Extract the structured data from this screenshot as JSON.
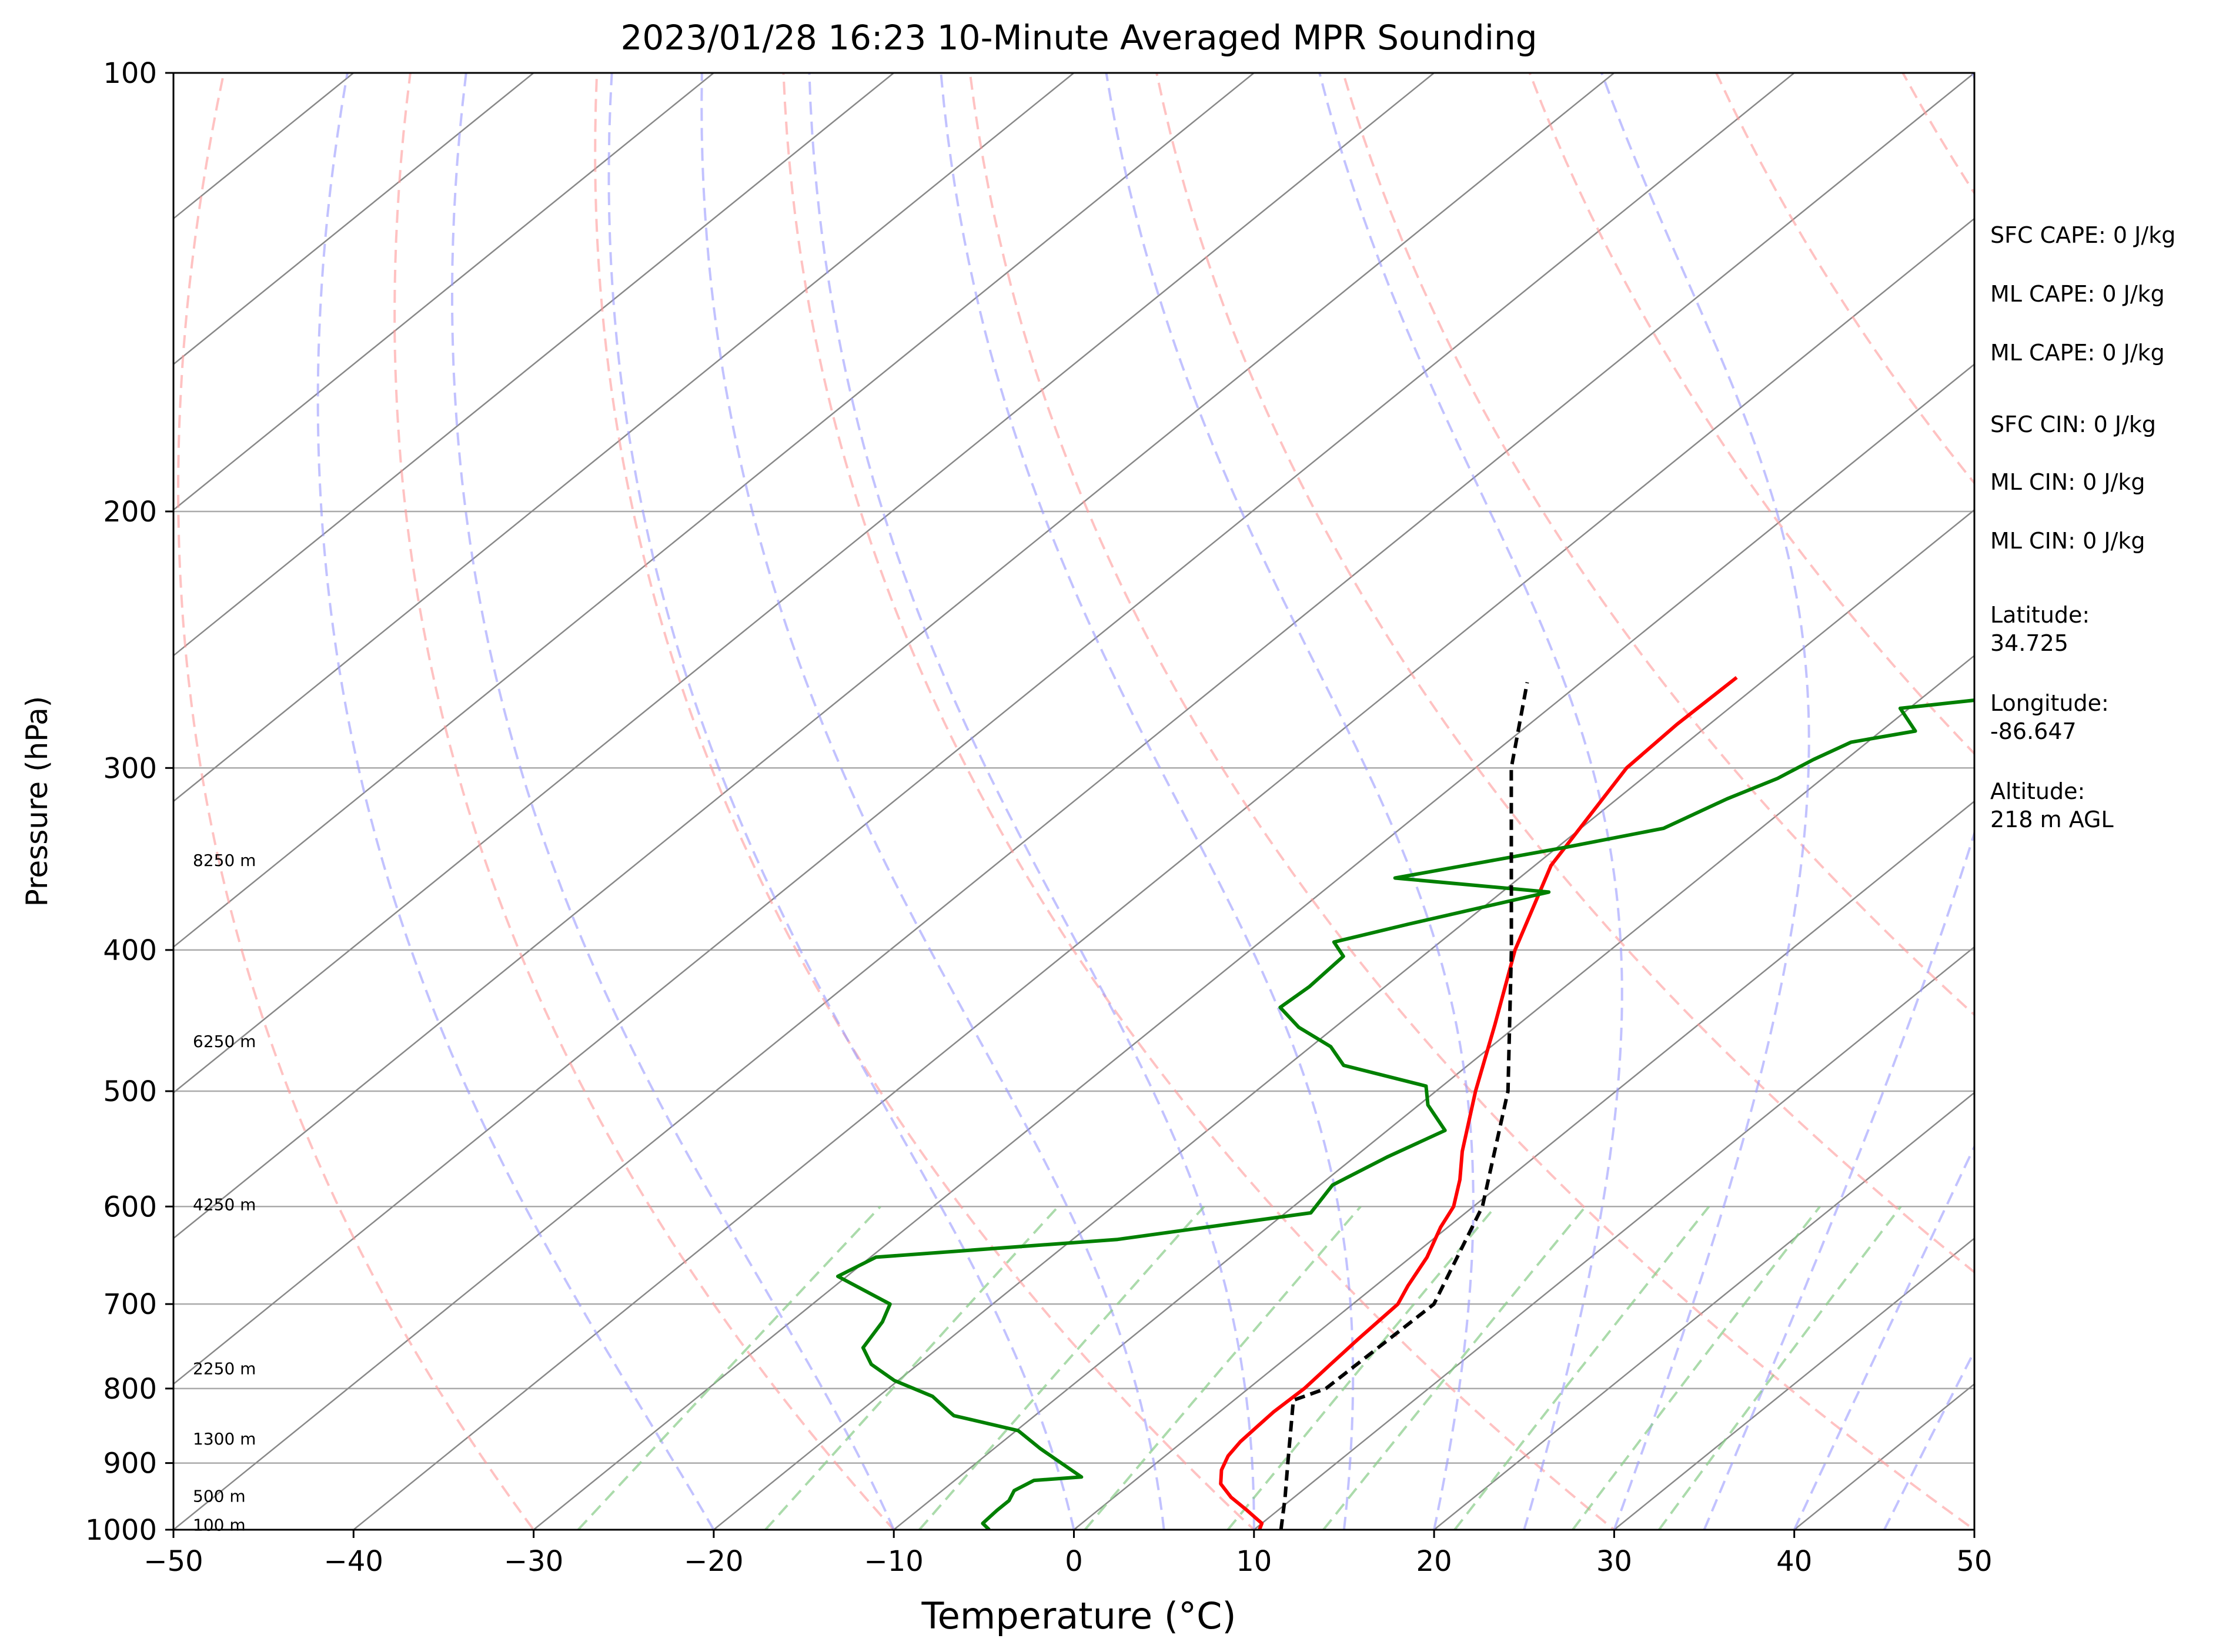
{
  "chart_data": {
    "type": "skew-t",
    "title": "2023/01/28 16:23 10-Minute Averaged MPR Sounding",
    "xlabel": "Temperature (°C)",
    "ylabel": "Pressure (hPa)",
    "xlim": [
      -50,
      50
    ],
    "ylim": [
      1000,
      100
    ],
    "y_scale": "log",
    "x_ticks": [
      "−50",
      "−40",
      "−30",
      "−20",
      "−10",
      "0",
      "10",
      "20",
      "30",
      "40",
      "50"
    ],
    "x_tick_values": [
      -50,
      -40,
      -30,
      -20,
      -10,
      0,
      10,
      20,
      30,
      40,
      50
    ],
    "y_ticks": [
      "1000",
      "900",
      "800",
      "700",
      "600",
      "500",
      "400",
      "300",
      "200",
      "100"
    ],
    "y_tick_values": [
      1000,
      900,
      800,
      700,
      600,
      500,
      400,
      300,
      200,
      100
    ],
    "height_labels": [
      {
        "text": "100 m",
        "p": 992
      },
      {
        "text": "500 m",
        "p": 948
      },
      {
        "text": "1300 m",
        "p": 866
      },
      {
        "text": "2250 m",
        "p": 775
      },
      {
        "text": "4250 m",
        "p": 598
      },
      {
        "text": "6250 m",
        "p": 462
      },
      {
        "text": "8250 m",
        "p": 347
      }
    ],
    "series": [
      {
        "kind": "temperature",
        "color": "#ff0000",
        "points": [
          [
            1000,
            10.3
          ],
          [
            990,
            10.0
          ],
          [
            970,
            8.3
          ],
          [
            950,
            6.5
          ],
          [
            930,
            5.0
          ],
          [
            910,
            4.1
          ],
          [
            890,
            3.5
          ],
          [
            870,
            3.2
          ],
          [
            850,
            3.1
          ],
          [
            830,
            3.0
          ],
          [
            800,
            3.1
          ],
          [
            770,
            2.9
          ],
          [
            740,
            2.7
          ],
          [
            700,
            2.5
          ],
          [
            680,
            1.8
          ],
          [
            650,
            0.9
          ],
          [
            620,
            -0.4
          ],
          [
            600,
            -1.1
          ],
          [
            575,
            -2.6
          ],
          [
            550,
            -4.4
          ],
          [
            500,
            -7.8
          ],
          [
            450,
            -11.3
          ],
          [
            400,
            -15.3
          ],
          [
            350,
            -19.1
          ],
          [
            300,
            -21.6
          ],
          [
            280,
            -21.8
          ],
          [
            260,
            -21.7
          ]
        ]
      },
      {
        "kind": "dewpoint",
        "color": "#008000",
        "points": [
          [
            1000,
            -4.7
          ],
          [
            990,
            -5.5
          ],
          [
            970,
            -5.6
          ],
          [
            955,
            -5.6
          ],
          [
            940,
            -6.0
          ],
          [
            925,
            -5.6
          ],
          [
            920,
            -3.2
          ],
          [
            880,
            -7.4
          ],
          [
            855,
            -9.9
          ],
          [
            835,
            -14.5
          ],
          [
            830,
            -15.0
          ],
          [
            810,
            -17.0
          ],
          [
            790,
            -20.2
          ],
          [
            770,
            -22.6
          ],
          [
            750,
            -24.2
          ],
          [
            720,
            -24.9
          ],
          [
            700,
            -25.7
          ],
          [
            670,
            -30.5
          ],
          [
            650,
            -29.7
          ],
          [
            632,
            -17.5
          ],
          [
            606,
            -8.6
          ],
          [
            580,
            -9.3
          ],
          [
            555,
            -8.2
          ],
          [
            532,
            -6.8
          ],
          [
            511,
            -9.5
          ],
          [
            496,
            -10.9
          ],
          [
            480,
            -16.9
          ],
          [
            466,
            -18.9
          ],
          [
            452,
            -22.0
          ],
          [
            438,
            -24.4
          ],
          [
            424,
            -24.2
          ],
          [
            404,
            -24.4
          ],
          [
            395,
            -25.9
          ],
          [
            384,
            -23.0
          ],
          [
            365,
            -17.4
          ],
          [
            357,
            -26.9
          ],
          [
            340,
            -19.5
          ],
          [
            330,
            -15.4
          ],
          [
            315,
            -13.9
          ],
          [
            305,
            -12.5
          ],
          [
            296,
            -11.8
          ],
          [
            288,
            -10.9
          ],
          [
            283,
            -8.1
          ],
          [
            273,
            -10.5
          ],
          [
            263,
            -0.1
          ]
        ]
      },
      {
        "kind": "parcel",
        "color": "#000000",
        "style": "dashed",
        "points": [
          [
            1000,
            11.5
          ],
          [
            950,
            9.5
          ],
          [
            900,
            7.3
          ],
          [
            850,
            5.0
          ],
          [
            815,
            3.3
          ],
          [
            800,
            4.3
          ],
          [
            700,
            4.5
          ],
          [
            600,
            0.5
          ],
          [
            500,
            -6.0
          ],
          [
            400,
            -15.5
          ],
          [
            300,
            -28.0
          ],
          [
            262,
            -33.0
          ]
        ]
      }
    ],
    "dry_adiabats": [
      -30,
      -10,
      10,
      30,
      50,
      70,
      90,
      110,
      130,
      150,
      170,
      190,
      210
    ],
    "moist_adiabats": [
      -20,
      -10,
      0,
      5,
      10,
      15,
      20,
      25,
      30,
      35,
      40,
      45
    ],
    "mixing_ratios": [
      0.0004,
      0.001,
      0.002,
      0.004,
      0.007,
      0.01,
      0.016,
      0.024,
      0.032
    ],
    "info_lines": [
      "SFC CAPE: 0 J/kg",
      "ML CAPE: 0 J/kg",
      "ML CAPE: 0 J/kg",
      "SFC CIN: 0 J/kg",
      "ML CIN: 0 J/kg",
      "ML CIN: 0 J/kg",
      "Latitude:\n34.725",
      "Longitude:\n-86.647",
      "Altitude:\n218 m AGL"
    ],
    "colors": {
      "dry_adiabat": "#ff9999",
      "moist_adiabat": "#9999ff",
      "mixing_ratio": "#88cc88",
      "isotherm": "#888888",
      "grid": "#aaaaaa"
    }
  }
}
